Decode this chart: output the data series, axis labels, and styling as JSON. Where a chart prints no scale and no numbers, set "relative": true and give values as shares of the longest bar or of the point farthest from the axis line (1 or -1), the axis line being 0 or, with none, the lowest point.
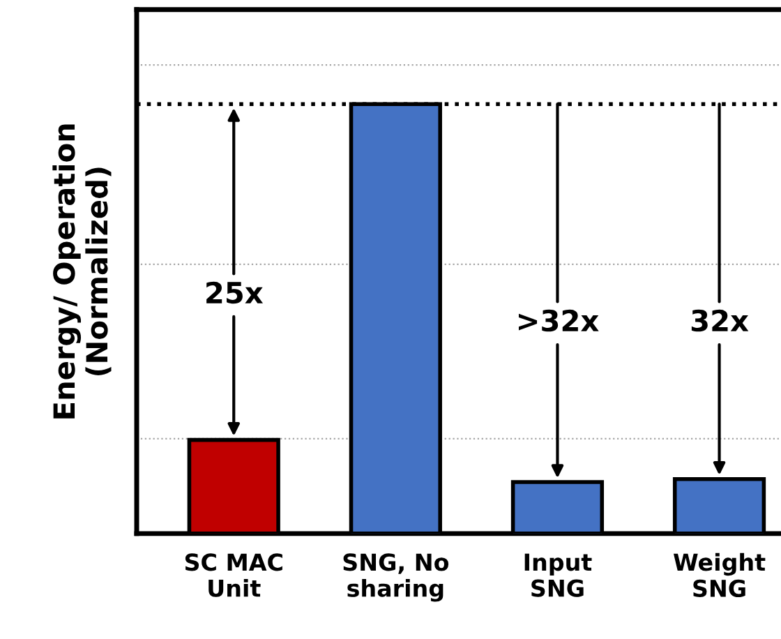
{
  "chart_data": {
    "type": "bar",
    "relative": true,
    "ylabel": "Energy/ Operation\n(Normalized)",
    "categories": [
      "SC MAC\nUnit",
      "SNG, No\nsharing",
      "Input\nSNG",
      "Weight\nSNG"
    ],
    "values": [
      0.218,
      1,
      0.12,
      0.127
    ],
    "colors": [
      "#c00000",
      "#4472c4",
      "#4472c4",
      "#4472c4"
    ],
    "ref_lines": [
      {
        "axis": "y",
        "value": 1.091,
        "color": "#a6a6a6",
        "line_style": "dotted"
      },
      {
        "axis": "y",
        "value": 0.627,
        "color": "#a6a6a6",
        "line_style": "dotted"
      },
      {
        "axis": "y",
        "value": 0.221,
        "color": "#a6a6a6",
        "line_style": "dotted"
      },
      {
        "axis": "y",
        "value": 1,
        "color": "#000000",
        "line_style": "dotted"
      }
    ],
    "annotations": [
      "25x",
      ">32x",
      "32x"
    ]
  }
}
